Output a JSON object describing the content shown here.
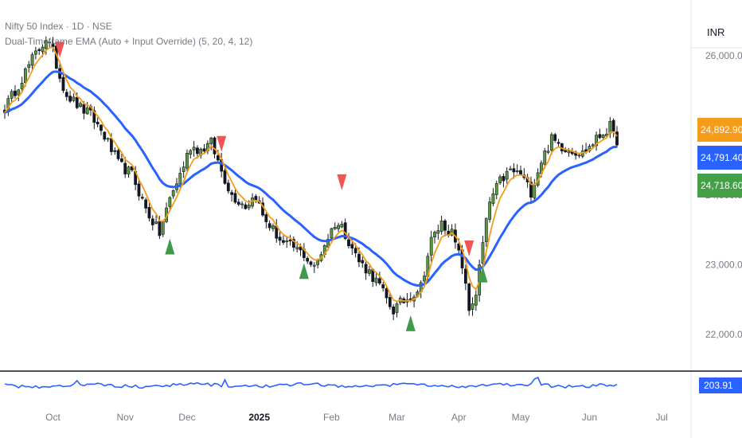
{
  "header": {
    "symbol_line": "Nifty 50 Index · 1D · NSE",
    "indicator_line": "Dual-Timeframe EMA (Auto + Input Override) (5, 20, 4, 12)"
  },
  "price_scale": {
    "currency": "INR",
    "badges": [
      {
        "label": "24,892.90",
        "value": 24892.9,
        "color": "#f59c1a"
      },
      {
        "label": "24,791.40",
        "value": 24791.4,
        "color": "#2962ff"
      },
      {
        "label": "24,718.60",
        "value": 24718.6,
        "color": "#43a047"
      }
    ],
    "sub_badge": {
      "label": "203.91",
      "color": "#2962ff"
    }
  },
  "chart_data": {
    "type": "candlestick",
    "ylim": [
      21500,
      26800
    ],
    "yticks": [
      {
        "label": "26,000.00",
        "value": 26000
      },
      {
        "label": "24,000.00",
        "value": 24000
      },
      {
        "label": "23,000.00",
        "value": 23000
      },
      {
        "label": "22,000.00",
        "value": 22000
      }
    ],
    "x_ticks": [
      {
        "label": "Oct",
        "index": 14,
        "bold": false
      },
      {
        "label": "Nov",
        "index": 35,
        "bold": false
      },
      {
        "label": "Dec",
        "index": 53,
        "bold": false
      },
      {
        "label": "2025",
        "index": 74,
        "bold": true
      },
      {
        "label": "Feb",
        "index": 95,
        "bold": false
      },
      {
        "label": "Mar",
        "index": 114,
        "bold": false
      },
      {
        "label": "Apr",
        "index": 132,
        "bold": false
      },
      {
        "label": "May",
        "index": 150,
        "bold": false
      },
      {
        "label": "Jun",
        "index": 170,
        "bold": false
      },
      {
        "label": "Jul",
        "index": 191,
        "bold": false
      }
    ],
    "close_anchors": [
      [
        0,
        25250
      ],
      [
        3,
        25500
      ],
      [
        8,
        25950
      ],
      [
        12,
        26250
      ],
      [
        14,
        26050
      ],
      [
        16,
        25700
      ],
      [
        18,
        25450
      ],
      [
        22,
        25250
      ],
      [
        25,
        25150
      ],
      [
        29,
        24850
      ],
      [
        33,
        24450
      ],
      [
        37,
        24300
      ],
      [
        41,
        23800
      ],
      [
        45,
        23450
      ],
      [
        48,
        23950
      ],
      [
        51,
        24300
      ],
      [
        54,
        24700
      ],
      [
        57,
        24650
      ],
      [
        60,
        24750
      ],
      [
        63,
        24350
      ],
      [
        66,
        24000
      ],
      [
        70,
        23850
      ],
      [
        73,
        24000
      ],
      [
        75,
        23700
      ],
      [
        78,
        23500
      ],
      [
        81,
        23300
      ],
      [
        84,
        23250
      ],
      [
        87,
        23150
      ],
      [
        90,
        22950
      ],
      [
        93,
        23300
      ],
      [
        96,
        23600
      ],
      [
        98,
        23550
      ],
      [
        100,
        23350
      ],
      [
        103,
        23050
      ],
      [
        106,
        22900
      ],
      [
        109,
        22700
      ],
      [
        111,
        22500
      ],
      [
        113,
        22350
      ],
      [
        115,
        22450
      ],
      [
        118,
        22550
      ],
      [
        121,
        22700
      ],
      [
        124,
        23350
      ],
      [
        127,
        23600
      ],
      [
        130,
        23450
      ],
      [
        133,
        23000
      ],
      [
        135,
        22350
      ],
      [
        137,
        22600
      ],
      [
        139,
        23300
      ],
      [
        141,
        23900
      ],
      [
        144,
        24200
      ],
      [
        147,
        24350
      ],
      [
        150,
        24300
      ],
      [
        153,
        24050
      ],
      [
        156,
        24500
      ],
      [
        159,
        24800
      ],
      [
        162,
        24700
      ],
      [
        165,
        24650
      ],
      [
        168,
        24600
      ],
      [
        171,
        24750
      ],
      [
        174,
        24900
      ],
      [
        176,
        24980
      ],
      [
        178,
        24720
      ]
    ],
    "signals": [
      {
        "type": "sell",
        "index": 16,
        "price": 26200
      },
      {
        "type": "buy",
        "index": 48,
        "price": 23150
      },
      {
        "type": "sell",
        "index": 63,
        "price": 24850
      },
      {
        "type": "buy",
        "index": 87,
        "price": 22800
      },
      {
        "type": "sell",
        "index": 98,
        "price": 24300
      },
      {
        "type": "buy",
        "index": 118,
        "price": 22050
      },
      {
        "type": "sell",
        "index": 135,
        "price": 23350
      },
      {
        "type": "buy",
        "index": 139,
        "price": 22750
      }
    ],
    "ema_fast": {
      "period": 5,
      "color": "#f59c1a"
    },
    "ema_slow": {
      "period": 20,
      "color": "#2962ff"
    },
    "oscillator": {
      "color": "#2962ff"
    }
  }
}
